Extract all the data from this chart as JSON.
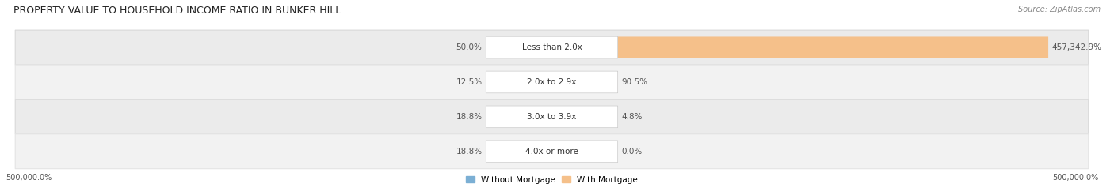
{
  "title": "PROPERTY VALUE TO HOUSEHOLD INCOME RATIO IN BUNKER HILL",
  "source": "Source: ZipAtlas.com",
  "categories": [
    "Less than 2.0x",
    "2.0x to 2.9x",
    "3.0x to 3.9x",
    "4.0x or more"
  ],
  "without_mortgage": [
    50.0,
    12.5,
    18.8,
    18.8
  ],
  "with_mortgage": [
    457342.9,
    90.5,
    4.8,
    0.0
  ],
  "without_mortgage_labels": [
    "50.0%",
    "12.5%",
    "18.8%",
    "18.8%"
  ],
  "with_mortgage_labels": [
    "457,342.9%",
    "90.5%",
    "4.8%",
    "0.0%"
  ],
  "without_mortgage_color": "#7bafd4",
  "with_mortgage_color": "#f5c08a",
  "xlabel_left": "500,000.0%",
  "xlabel_right": "500,000.0%",
  "legend_labels": [
    "Without Mortgage",
    "With Mortgage"
  ],
  "title_fontsize": 9,
  "label_fontsize": 7.5,
  "tick_fontsize": 7,
  "source_fontsize": 7,
  "max_val": 500000.0,
  "bg_color": "#ffffff",
  "row_colors": [
    "#ebebeb",
    "#f2f2f2",
    "#ebebeb",
    "#f2f2f2"
  ],
  "row_edge_colors": [
    "#d8d8d8",
    "#e4e4e4",
    "#d8d8d8",
    "#e4e4e4"
  ]
}
